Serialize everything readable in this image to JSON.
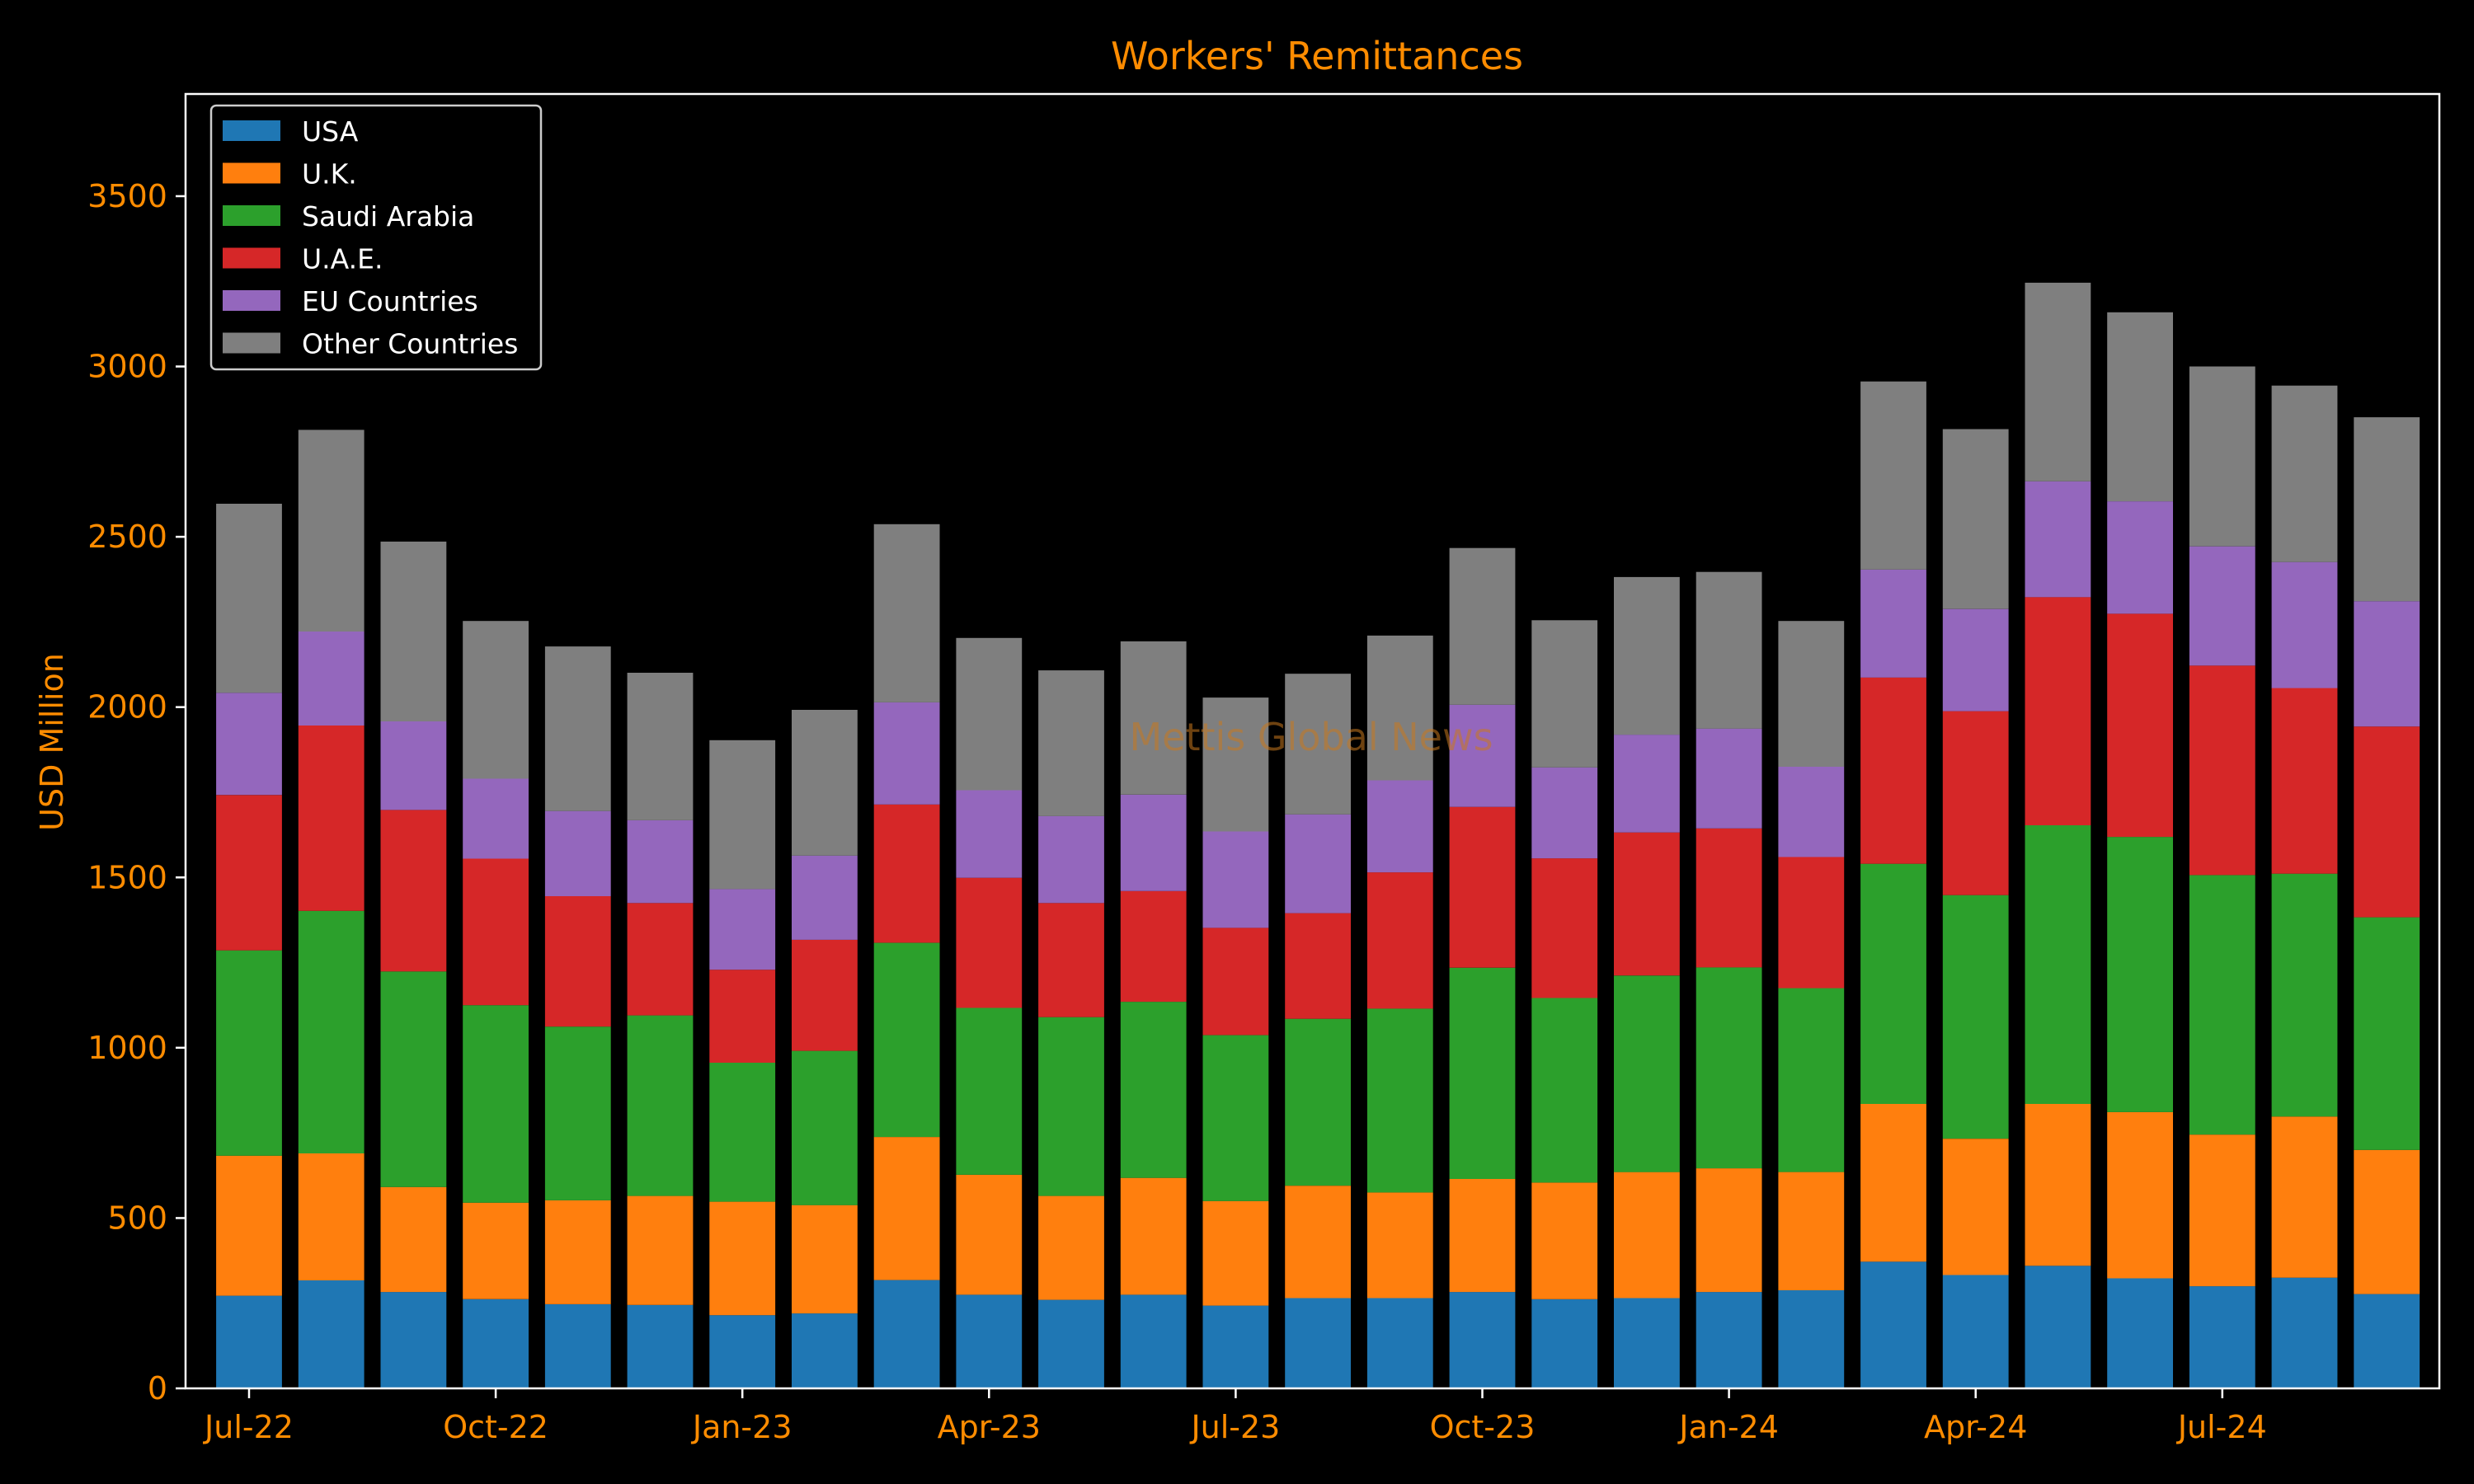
{
  "chart_data": {
    "type": "bar",
    "stacked": true,
    "title": "Workers' Remittances",
    "xlabel": "",
    "ylabel": "USD Million",
    "watermark": "Mettis Global News",
    "ylim": [
      0,
      3800
    ],
    "yticks": [
      0,
      500,
      1000,
      1500,
      2000,
      2500,
      3000,
      3500
    ],
    "categories": [
      "Jul-22",
      "Aug-22",
      "Sep-22",
      "Oct-22",
      "Nov-22",
      "Dec-22",
      "Jan-23",
      "Feb-23",
      "Mar-23",
      "Apr-23",
      "May-23",
      "Jun-23",
      "Jul-23",
      "Aug-23",
      "Sep-23",
      "Oct-23",
      "Nov-23",
      "Dec-23",
      "Jan-24",
      "Feb-24",
      "Mar-24",
      "Apr-24",
      "May-24",
      "Jun-24",
      "Jul-24",
      "Aug-24",
      "Sep-24"
    ],
    "xticks": [
      "Jul-22",
      "Oct-22",
      "Jan-23",
      "Apr-23",
      "Jul-23",
      "Oct-23",
      "Jan-24",
      "Apr-24",
      "Jul-24"
    ],
    "legend_position": "upper-left",
    "grid": false,
    "series": [
      {
        "name": "USA",
        "color": "#1f77b4",
        "values": [
          272,
          317,
          283,
          262,
          247,
          245,
          215,
          220,
          318,
          275,
          260,
          275,
          243,
          265,
          265,
          283,
          262,
          265,
          283,
          288,
          372,
          333,
          360,
          323,
          300,
          325,
          277
        ]
      },
      {
        "name": "U.K.",
        "color": "#ff7f0e",
        "values": [
          411,
          373,
          308,
          283,
          305,
          320,
          333,
          318,
          420,
          352,
          305,
          343,
          307,
          330,
          310,
          332,
          342,
          370,
          363,
          347,
          463,
          400,
          475,
          488,
          445,
          473,
          423
        ]
      },
      {
        "name": "Saudi Arabia",
        "color": "#2ca02c",
        "values": [
          603,
          712,
          633,
          580,
          510,
          530,
          408,
          453,
          570,
          490,
          525,
          517,
          487,
          490,
          540,
          620,
          542,
          577,
          590,
          540,
          705,
          715,
          818,
          808,
          762,
          713,
          683
        ]
      },
      {
        "name": "U.A.E.",
        "color": "#d62728",
        "values": [
          456,
          544,
          474,
          430,
          383,
          330,
          273,
          326,
          406,
          382,
          335,
          325,
          315,
          310,
          400,
          472,
          410,
          420,
          408,
          385,
          547,
          540,
          670,
          655,
          615,
          545,
          560
        ]
      },
      {
        "name": "EU Countries",
        "color": "#9467bd",
        "values": [
          300,
          276,
          260,
          235,
          250,
          243,
          237,
          247,
          300,
          257,
          255,
          283,
          283,
          290,
          270,
          300,
          267,
          287,
          293,
          265,
          317,
          300,
          340,
          330,
          350,
          370,
          368
        ]
      },
      {
        "name": "Other Countries",
        "color": "#7f7f7f",
        "values": [
          555,
          592,
          528,
          463,
          483,
          433,
          437,
          428,
          523,
          447,
          428,
          450,
          393,
          413,
          425,
          460,
          432,
          463,
          460,
          428,
          552,
          528,
          583,
          555,
          528,
          518,
          540
        ]
      }
    ]
  }
}
